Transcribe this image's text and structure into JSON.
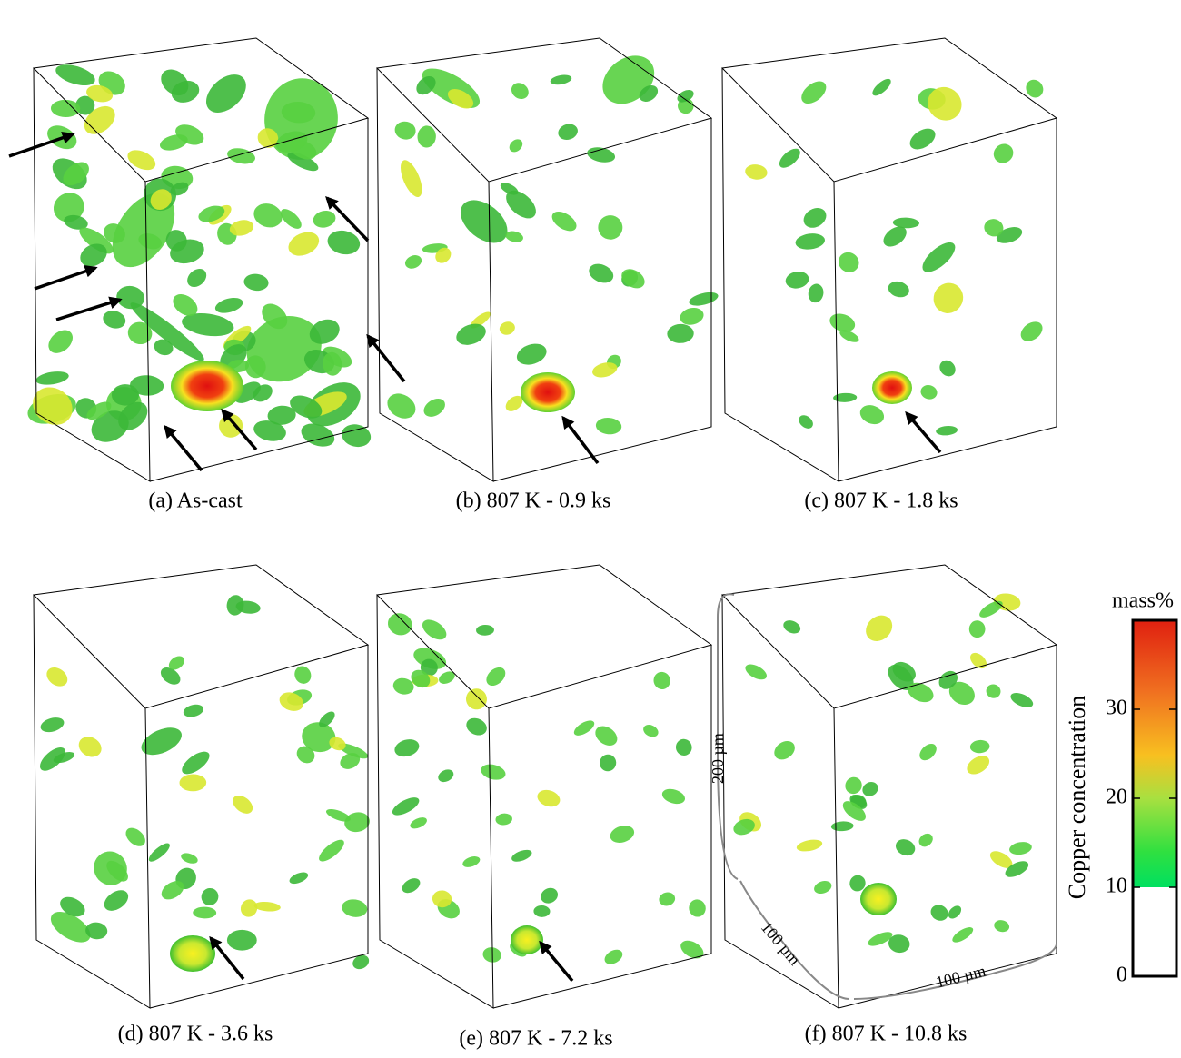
{
  "panels": [
    {
      "caption": "(a) As-cast"
    },
    {
      "caption": "(b) 807 K - 0.9 ks"
    },
    {
      "caption": "(c) 807 K - 1.8 ks"
    },
    {
      "caption": "(d) 807 K - 3.6 ks"
    },
    {
      "caption": "(e) 807 K - 7.2 ks"
    },
    {
      "caption": "(f) 807 K - 10.8 ks"
    }
  ],
  "scale_labels": [
    "200 µm",
    "100 µm",
    "100 µm"
  ],
  "colorbar": {
    "title": "Copper concentration",
    "unit": "mass%",
    "lim": [
      0,
      40
    ],
    "ticks": [
      0,
      10,
      20,
      30
    ]
  }
}
